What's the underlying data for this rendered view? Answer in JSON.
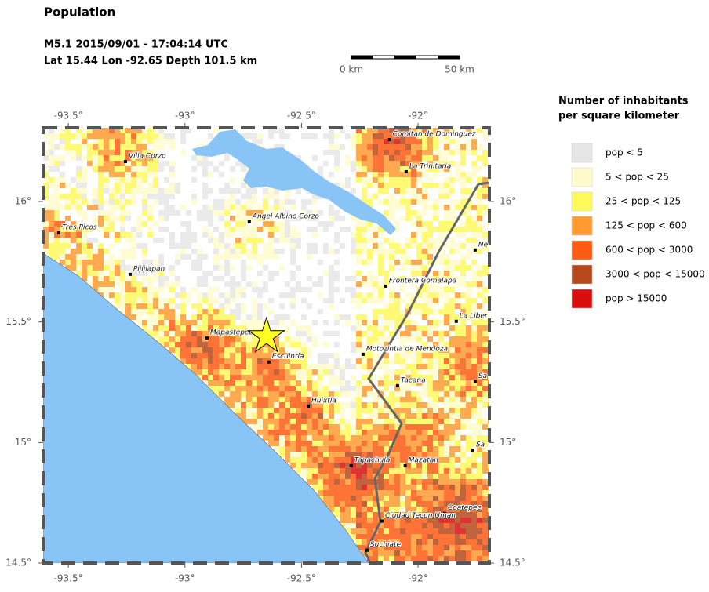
{
  "header": {
    "title": "Population",
    "line1": "M5.1  2015/09/01 - 17:04:14 UTC",
    "line2": "Lat 15.44    Lon -92.65     Depth 101.5 km"
  },
  "scale_bar": {
    "start_label": "0 km",
    "end_label": "50 km"
  },
  "map": {
    "xlim": [
      -93.608,
      -91.694
    ],
    "ylim": [
      14.5,
      16.306
    ],
    "xticks": [
      {
        "value": -93.5,
        "label": "-93.5°"
      },
      {
        "value": -93,
        "label": "-93°"
      },
      {
        "value": -92.5,
        "label": "-92.5°"
      },
      {
        "value": -92,
        "label": "-92°"
      }
    ],
    "yticks": [
      {
        "value": 16,
        "label": "16°"
      },
      {
        "value": 15.5,
        "label": "15.5°"
      },
      {
        "value": 15,
        "label": "15°"
      },
      {
        "value": 14.5,
        "label": "14.5°"
      }
    ],
    "epicenter": {
      "lon": -92.65,
      "lat": 15.44
    },
    "cities": [
      {
        "name": "Villa Corzo",
        "lon": -93.255,
        "lat": 16.166
      },
      {
        "name": "Comitan de Dominguez",
        "lon": -92.122,
        "lat": 16.257
      },
      {
        "name": "La Trinitaria",
        "lon": -92.051,
        "lat": 16.124
      },
      {
        "name": "Angel Albino Corzo",
        "lon": -92.724,
        "lat": 15.916
      },
      {
        "name": "Tres Picos",
        "lon": -93.541,
        "lat": 15.87
      },
      {
        "name": "Pijijiapan",
        "lon": -93.235,
        "lat": 15.698
      },
      {
        "name": "Frontera Comalapa",
        "lon": -92.139,
        "lat": 15.649
      },
      {
        "name": "Ne",
        "lon": -91.755,
        "lat": 15.799
      },
      {
        "name": "La Liber",
        "lon": -91.836,
        "lat": 15.503
      },
      {
        "name": "Mapastepec",
        "lon": -92.905,
        "lat": 15.434
      },
      {
        "name": "Escuintla",
        "lon": -92.64,
        "lat": 15.334
      },
      {
        "name": "Motozintla de Mendoza",
        "lon": -92.236,
        "lat": 15.366
      },
      {
        "name": "Tacana",
        "lon": -92.088,
        "lat": 15.236
      },
      {
        "name": "Sa",
        "lon": -91.755,
        "lat": 15.254
      },
      {
        "name": "Huixtla",
        "lon": -92.471,
        "lat": 15.151
      },
      {
        "name": "Sa",
        "lon": -91.765,
        "lat": 14.968
      },
      {
        "name": "Tapachula",
        "lon": -92.287,
        "lat": 14.904
      },
      {
        "name": "Mazatan",
        "lon": -92.055,
        "lat": 14.904
      },
      {
        "name": "Coatepec",
        "lon": -91.886,
        "lat": 14.706
      },
      {
        "name": "Ciudad Tecun Uman",
        "lon": -92.155,
        "lat": 14.674
      },
      {
        "name": "Suchiate",
        "lon": -92.219,
        "lat": 14.553
      }
    ]
  },
  "legend": {
    "title_line1": "Number of inhabitants",
    "title_line2": "per square kilometer",
    "items": [
      {
        "label": "pop < 5",
        "color": "#e6e6e6"
      },
      {
        "label": "5 < pop < 25",
        "color": "#fffbcc"
      },
      {
        "label": "25 < pop < 125",
        "color": "#fff95c"
      },
      {
        "label": "125 < pop < 600",
        "color": "#ff9a33"
      },
      {
        "label": "600 < pop < 3000",
        "color": "#ff5a14"
      },
      {
        "label": "3000 < pop < 15000",
        "color": "#b5491c"
      },
      {
        "label": "pop > 15000",
        "color": "#d90f0f"
      }
    ]
  }
}
